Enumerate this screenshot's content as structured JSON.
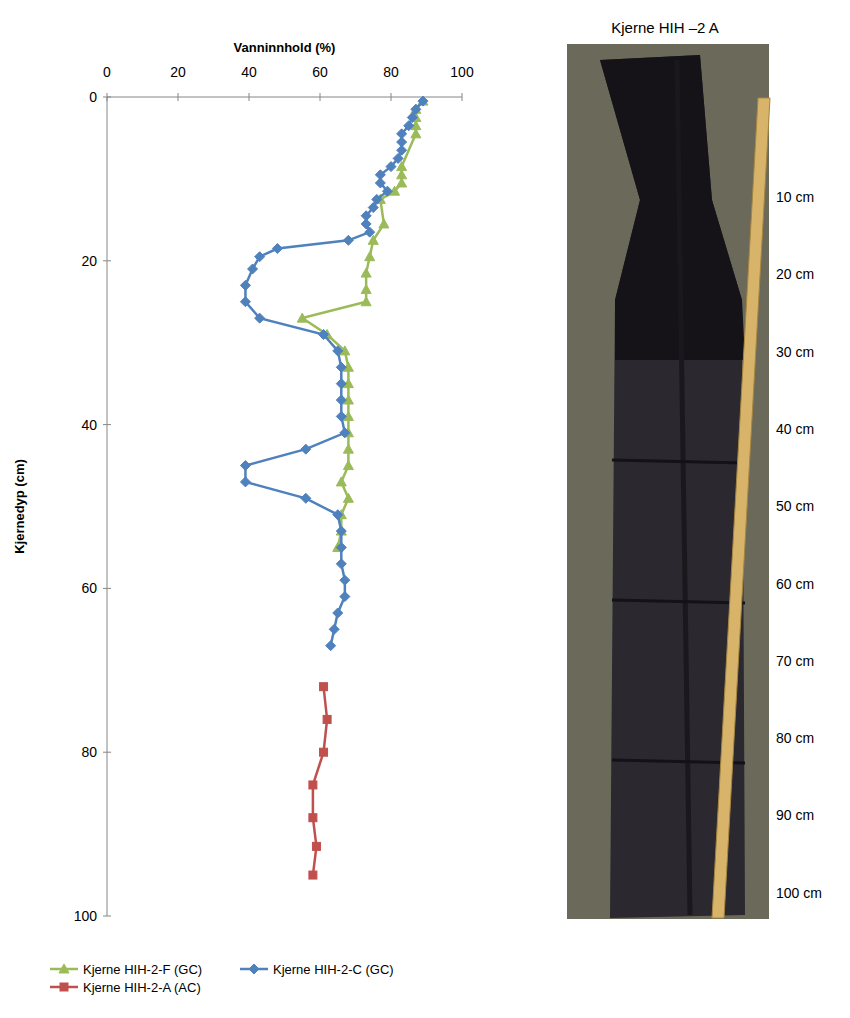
{
  "chart_data": {
    "type": "line",
    "x_label": "Vanninnhold (%)",
    "y_label": "Kjernedyp (cm)",
    "xlim": [
      0,
      100
    ],
    "xticks": [
      0,
      20,
      40,
      60,
      80,
      100
    ],
    "ylim": [
      100,
      0
    ],
    "yticks": [
      0,
      20,
      40,
      60,
      80,
      100
    ],
    "grid": false,
    "legend": "bottom",
    "series": [
      {
        "name": "Kjerne HIH-2-F (GC)",
        "color": "#9bbb59",
        "marker": "triangle",
        "x": [
          89,
          87,
          87,
          87,
          87,
          83,
          83,
          83,
          81,
          77,
          78,
          75,
          74,
          73,
          73,
          73,
          55,
          62,
          67,
          68,
          68,
          68,
          68,
          68,
          68,
          68,
          66,
          68,
          66,
          66,
          65
        ],
        "values": [
          0.5,
          1.5,
          2.5,
          3.5,
          4.5,
          8.5,
          9.5,
          10.5,
          11.5,
          12.5,
          15.5,
          17.5,
          19.5,
          21.5,
          23.5,
          25,
          27,
          29,
          31,
          33,
          35,
          37,
          39,
          41,
          43,
          45,
          47,
          49,
          51,
          53,
          55
        ]
      },
      {
        "name": "Kjerne HIH-2-C (GC)",
        "color": "#4f81bd",
        "marker": "diamond",
        "x": [
          89,
          87,
          86,
          85,
          83,
          83,
          83,
          82,
          80,
          77,
          77,
          79,
          76,
          75,
          73,
          73,
          74,
          68,
          48,
          43,
          41,
          39,
          39,
          43,
          61,
          65,
          66,
          66,
          66,
          66,
          67,
          56,
          39,
          39,
          56,
          65,
          66,
          66,
          66,
          67,
          67,
          65,
          64,
          63
        ],
        "values": [
          0.5,
          1.5,
          2.5,
          3.5,
          4.5,
          5.5,
          6.5,
          7.5,
          8.5,
          9.5,
          10.5,
          11.5,
          12.5,
          13.5,
          14.5,
          15.5,
          16.5,
          17.5,
          18.5,
          19.5,
          21,
          23,
          25,
          27,
          29,
          31,
          33,
          35,
          37,
          39,
          41,
          43,
          45,
          47,
          49,
          51,
          53,
          55,
          57,
          59,
          61,
          63,
          65,
          67
        ]
      },
      {
        "name": "Kjerne HIH-2-A (AC)",
        "color": "#c0504d",
        "marker": "square",
        "x": [
          61,
          62,
          61,
          58,
          58,
          59,
          58
        ],
        "values": [
          72,
          76,
          80,
          84,
          88,
          91.5,
          95
        ]
      }
    ]
  },
  "photo": {
    "title": "Kjerne HIH –2 A",
    "depth_labels": [
      "10 cm",
      "20 cm",
      "30 cm",
      "40 cm",
      "50 cm",
      "60 cm",
      "70 cm",
      "80 cm",
      "90 cm",
      "100 cm"
    ]
  }
}
